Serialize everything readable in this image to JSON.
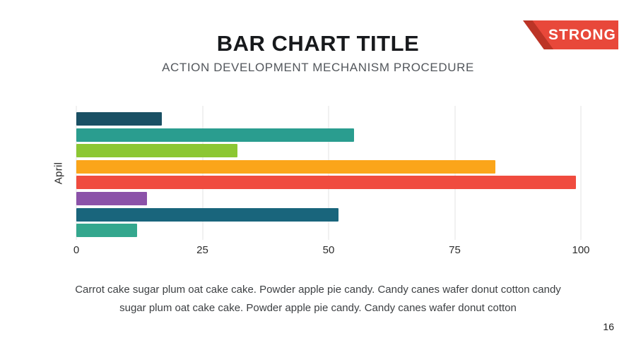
{
  "slide": {
    "title": "BAR CHART TITLE",
    "subtitle": "ACTION DEVELOPMENT MECHANISM PROCEDURE",
    "badge": {
      "label": "STRONG",
      "color": "#e8483a",
      "fold_color": "#bc3426"
    },
    "body_text": "Carrot cake sugar plum oat cake cake. Powder apple pie candy. Candy canes wafer donut cotton candy sugar plum oat cake cake. Powder apple pie candy. Candy canes wafer donut cotton",
    "page_number": "16"
  },
  "chart_data": {
    "type": "bar",
    "orientation": "horizontal",
    "group_label": "April",
    "values": [
      17,
      55,
      32,
      83,
      99,
      14,
      52,
      12
    ],
    "colors": [
      "#1a5064",
      "#2a9d8f",
      "#8cc733",
      "#fba51a",
      "#f04b3e",
      "#8b52a9",
      "#19657c",
      "#34a78e"
    ],
    "x_ticks": [
      0,
      25,
      50,
      75,
      100
    ],
    "xlim": [
      0,
      100
    ],
    "grid": true,
    "legend": "none",
    "title": "",
    "xlabel": "",
    "ylabel": "April"
  }
}
